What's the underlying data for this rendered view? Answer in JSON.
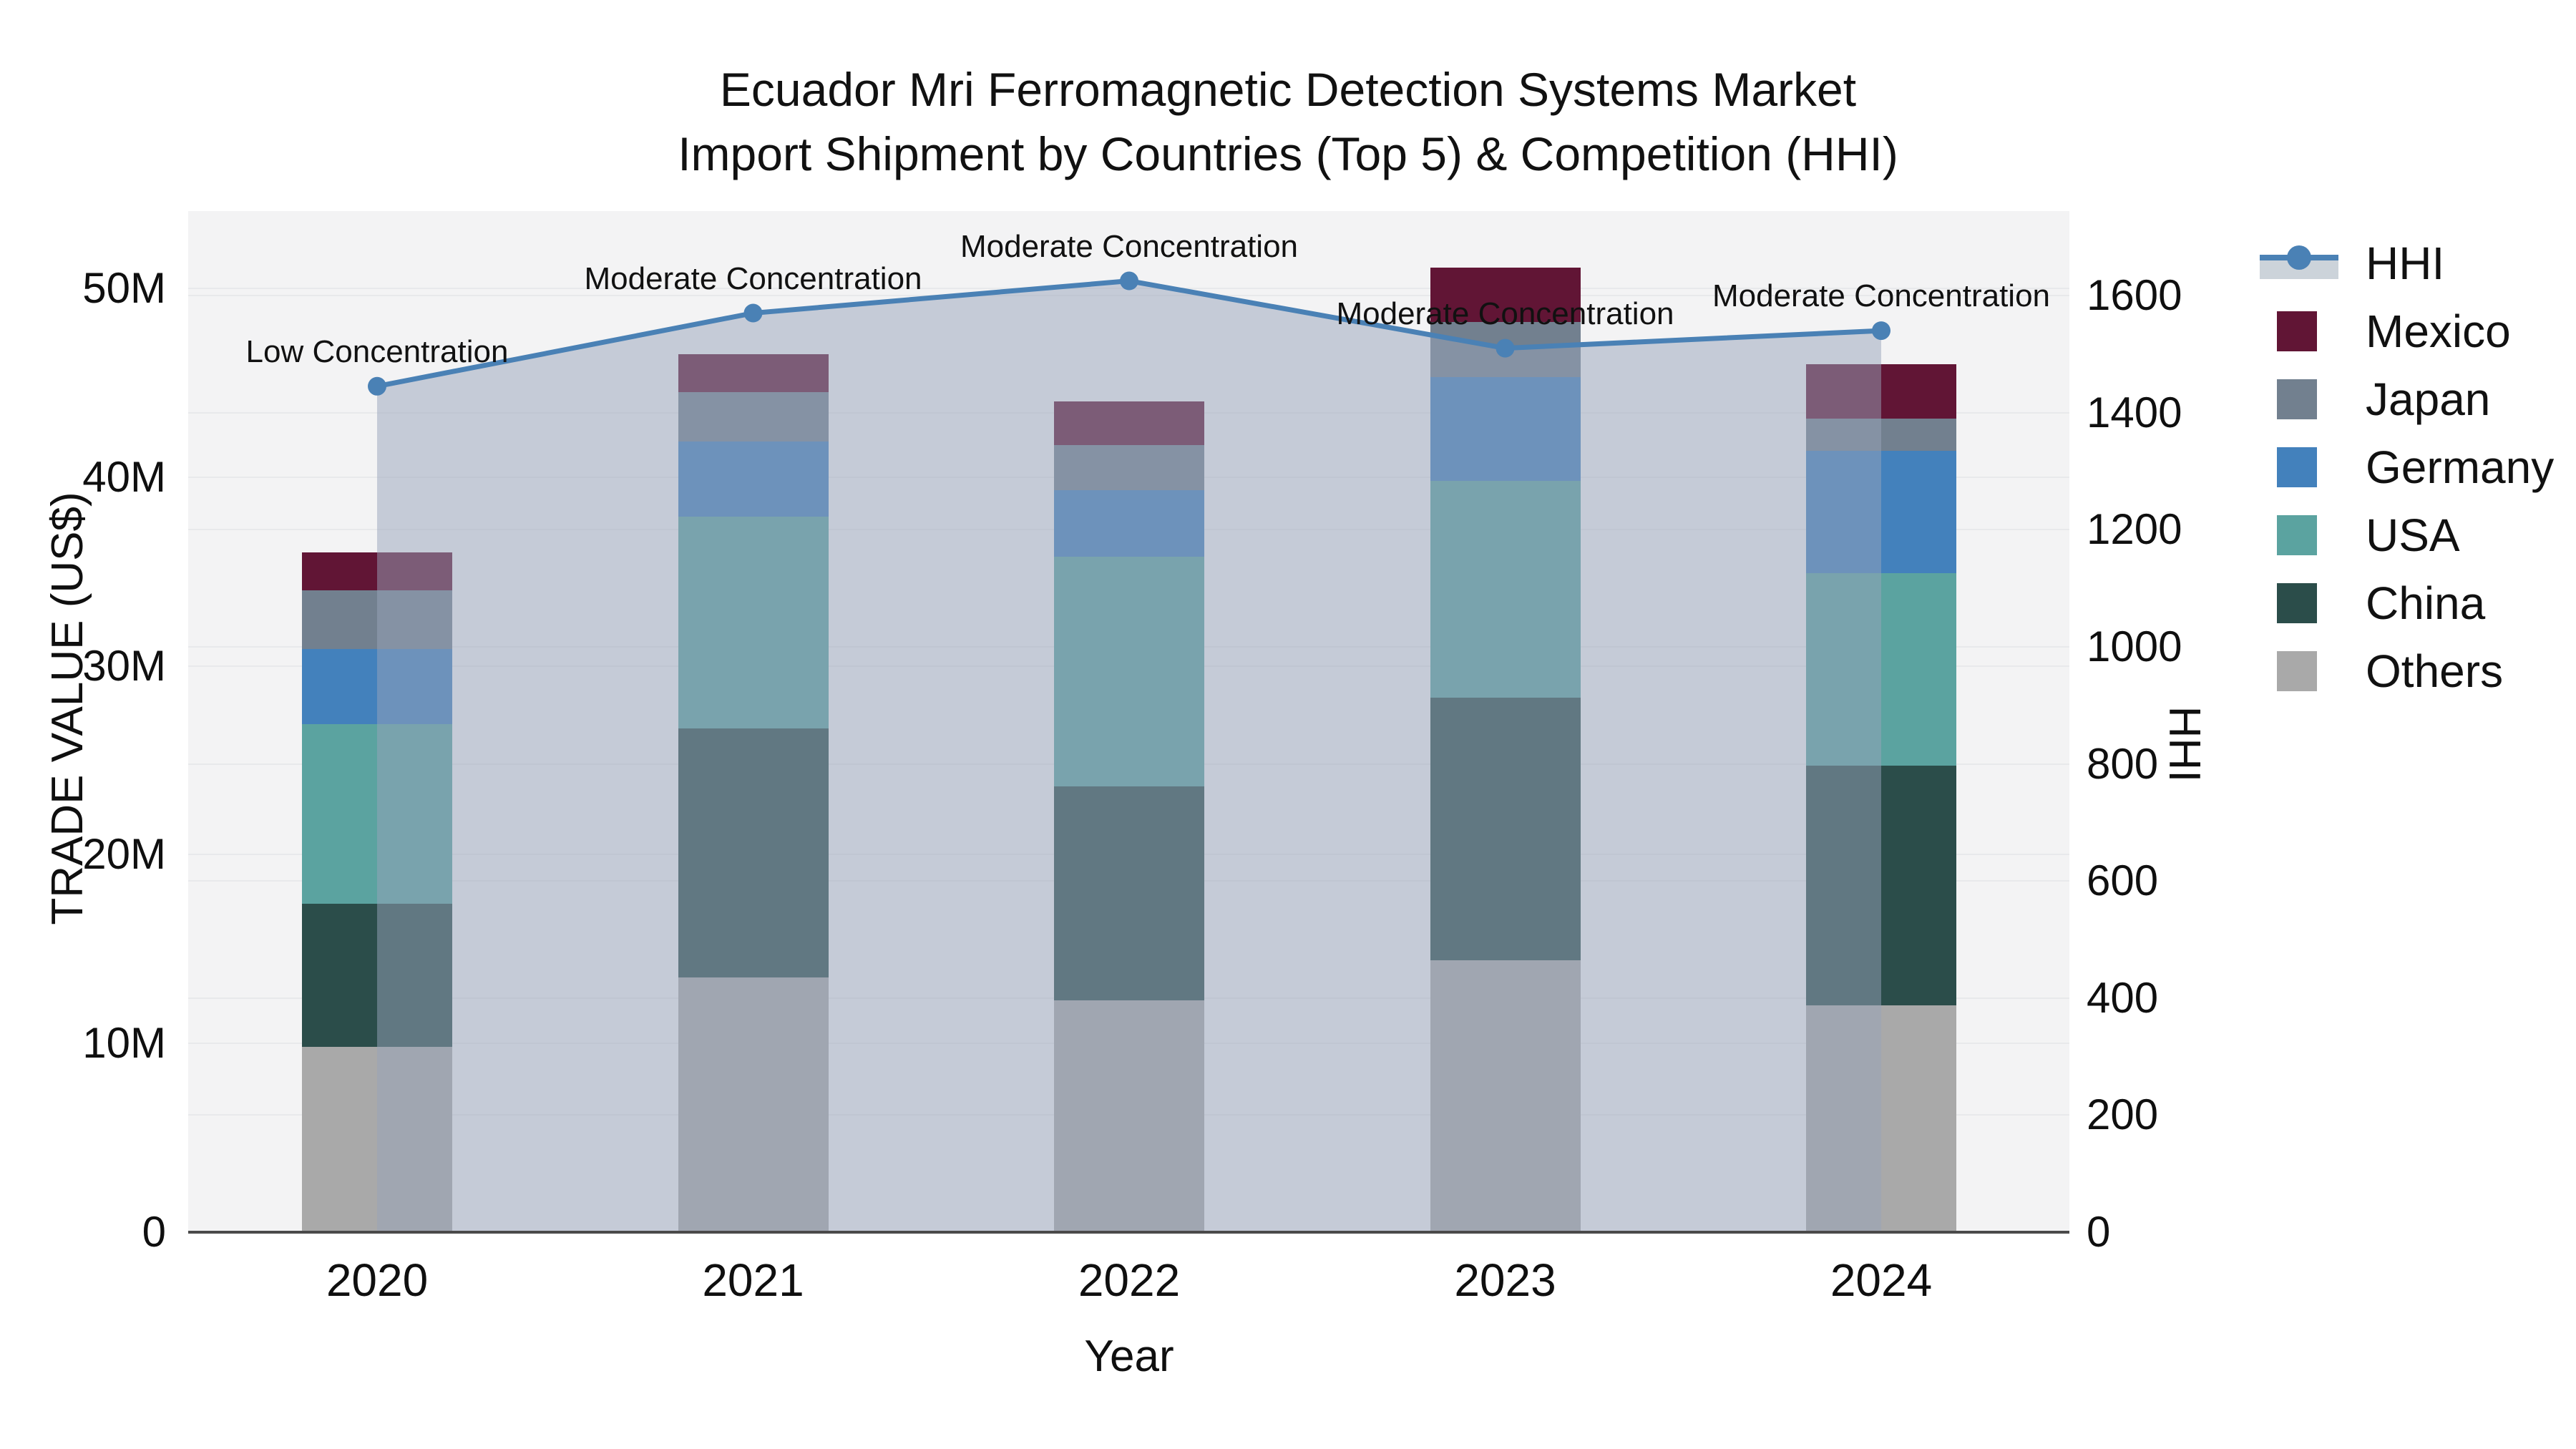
{
  "title": {
    "line1": "Ecuador Mri Ferromagnetic Detection Systems Market",
    "line2": "Import Shipment by Countries (Top 5) & Competition (HHI)"
  },
  "axes": {
    "left": {
      "title": "TRADE VALUE (US$)",
      "tick_labels": [
        "0",
        "10M",
        "20M",
        "30M",
        "40M",
        "50M"
      ],
      "tick_values": [
        0,
        10,
        20,
        30,
        40,
        50
      ],
      "range_millions": [
        0,
        54
      ]
    },
    "right": {
      "title": "HHI",
      "tick_labels": [
        "0",
        "200",
        "400",
        "600",
        "800",
        "1000",
        "1200",
        "1400",
        "1600"
      ],
      "tick_values": [
        0,
        200,
        400,
        600,
        800,
        1000,
        1200,
        1400,
        1600
      ],
      "range": [
        0,
        1744
      ]
    },
    "x": {
      "title": "Year",
      "tick_labels": [
        "2020",
        "2021",
        "2022",
        "2023",
        "2024"
      ]
    }
  },
  "legend": {
    "items": [
      {
        "label": "HHI",
        "type": "line",
        "color": "#4a81b5",
        "band_color": "#ccd3da"
      },
      {
        "label": "Mexico",
        "type": "box",
        "color": "#611535"
      },
      {
        "label": "Japan",
        "type": "box",
        "color": "#72808f"
      },
      {
        "label": "Germany",
        "type": "box",
        "color": "#4381bc"
      },
      {
        "label": "USA",
        "type": "box",
        "color": "#5ba3a0"
      },
      {
        "label": "China",
        "type": "box",
        "color": "#2b4d4a"
      },
      {
        "label": "Others",
        "type": "box",
        "color": "#a9a9a9"
      }
    ]
  },
  "chart_data": {
    "type": "bar",
    "stacked": true,
    "title": "Ecuador Mri Ferromagnetic Detection Systems Market — Import Shipment by Countries (Top 5) & Competition (HHI)",
    "xlabel": "Year",
    "ylabel_left": "TRADE VALUE (US$)",
    "ylabel_right": "HHI",
    "categories": [
      "2020",
      "2021",
      "2022",
      "2023",
      "2024"
    ],
    "value_unit": "millions US$",
    "series": [
      {
        "name": "Others",
        "color": "#a9a9a9",
        "values": [
          9.8,
          13.5,
          12.3,
          14.4,
          12.0
        ]
      },
      {
        "name": "China",
        "color": "#2b4d4a",
        "values": [
          7.6,
          13.2,
          11.3,
          13.9,
          12.7
        ]
      },
      {
        "name": "USA",
        "color": "#5ba3a0",
        "values": [
          9.5,
          11.2,
          12.2,
          11.5,
          10.2
        ]
      },
      {
        "name": "Germany",
        "color": "#4381bc",
        "values": [
          4.0,
          4.0,
          3.5,
          5.5,
          6.5
        ]
      },
      {
        "name": "Japan",
        "color": "#72808f",
        "values": [
          3.1,
          2.6,
          2.4,
          2.9,
          1.7
        ]
      },
      {
        "name": "Mexico",
        "color": "#611535",
        "values": [
          2.0,
          2.0,
          2.3,
          2.9,
          2.9
        ]
      }
    ],
    "bar_totals_millions": [
      36.0,
      46.5,
      44.0,
      51.1,
      46.0
    ],
    "line_series": {
      "name": "HHI",
      "axis": "right",
      "color": "#4a81b5",
      "area_fill": "rgba(151,164,186,0.5)",
      "values": [
        1445,
        1570,
        1625,
        1510,
        1540
      ]
    },
    "annotations": [
      {
        "category": "2020",
        "text": "Low Concentration"
      },
      {
        "category": "2021",
        "text": "Moderate Concentration"
      },
      {
        "category": "2022",
        "text": "Moderate Concentration"
      },
      {
        "category": "2023",
        "text": "Moderate Concentration"
      },
      {
        "category": "2024",
        "text": "Moderate Concentration"
      }
    ],
    "ylim_left_millions": [
      0,
      54
    ],
    "ylim_right": [
      0,
      1744
    ],
    "grid": true,
    "legend_position": "right"
  }
}
